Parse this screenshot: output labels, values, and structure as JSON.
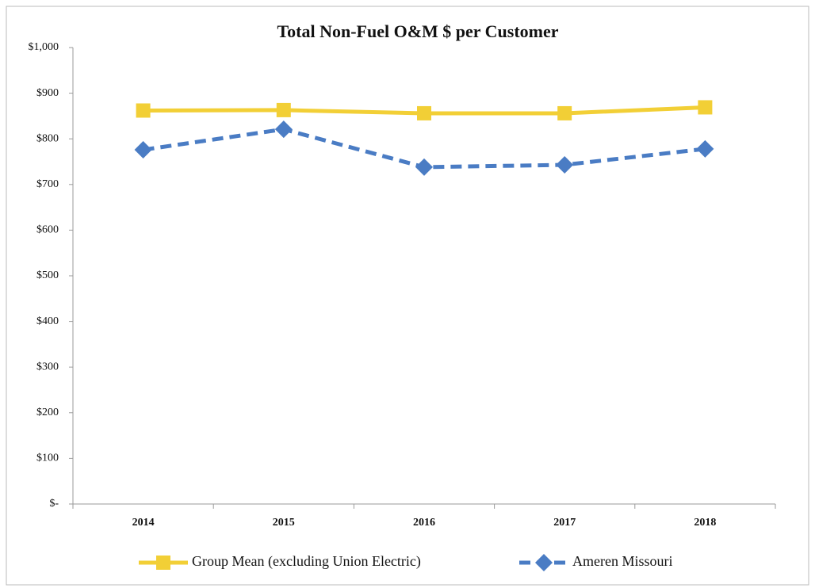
{
  "chart_data": {
    "type": "line",
    "title": "Total Non-Fuel O&M $ per Customer",
    "categories": [
      "2014",
      "2015",
      "2016",
      "2017",
      "2018"
    ],
    "series": [
      {
        "name": "Group Mean (excluding Union Electric)",
        "color": "#f2cf36",
        "marker": "square",
        "dash": false,
        "values": [
          862,
          863,
          856,
          856,
          869
        ]
      },
      {
        "name": "Ameren Missouri",
        "color": "#4a7cc4",
        "marker": "diamond",
        "dash": true,
        "values": [
          776,
          821,
          738,
          743,
          778
        ]
      }
    ],
    "ylim": [
      0,
      1000
    ],
    "yticks": [
      {
        "value": 0,
        "label": "$-"
      },
      {
        "value": 100,
        "label": "$100"
      },
      {
        "value": 200,
        "label": "$200"
      },
      {
        "value": 300,
        "label": "$300"
      },
      {
        "value": 400,
        "label": "$400"
      },
      {
        "value": 500,
        "label": "$500"
      },
      {
        "value": 600,
        "label": "$600"
      },
      {
        "value": 700,
        "label": "$700"
      },
      {
        "value": 800,
        "label": "$800"
      },
      {
        "value": 900,
        "label": "$900"
      },
      {
        "value": 1000,
        "label": "$1,000"
      }
    ],
    "legend": "bottom"
  }
}
